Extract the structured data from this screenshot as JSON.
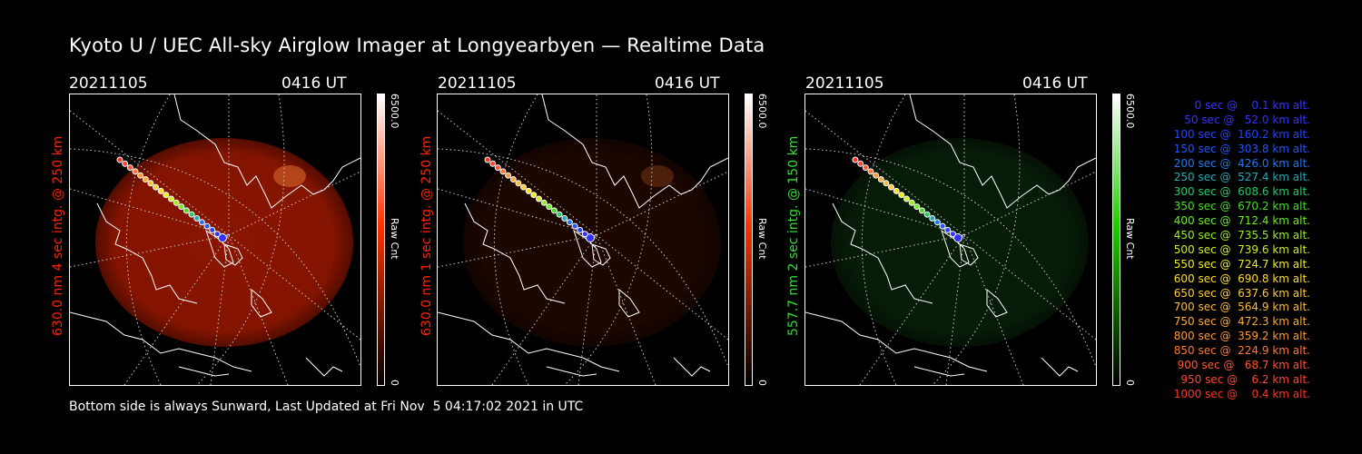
{
  "title": "Kyoto U / UEC All-sky Airglow Imager at Longyearbyen — Realtime Data",
  "footer": "Bottom side is always Sunward, Last Updated at Fri Nov  5 04:17:02 2021 in UTC",
  "panels": [
    {
      "date": "20211105",
      "time": "0416 UT",
      "ylabel": "630.0 nm 4 sec intg. @ 250 km",
      "label_color": "#ff2200",
      "colorbar": {
        "max_label": "6500.0",
        "min_label": "0",
        "unit": "Raw Cnt",
        "from": "#000000",
        "mid": "#ff3300",
        "to": "#ffffff"
      },
      "image_tint": "#8a1500",
      "image_intensity": 1.0
    },
    {
      "date": "20211105",
      "time": "0416 UT",
      "ylabel": "630.0 nm 1 sec intg. @ 250 km",
      "label_color": "#ff2200",
      "colorbar": {
        "max_label": "6500.0",
        "min_label": "0",
        "unit": "Raw Cnt",
        "from": "#000000",
        "mid": "#ff3300",
        "to": "#ffffff"
      },
      "image_tint": "#3a0c00",
      "image_intensity": 0.5
    },
    {
      "date": "20211105",
      "time": "0416 UT",
      "ylabel": "557.7 nm 2 sec intg. @ 150 km",
      "label_color": "#33dd33",
      "colorbar": {
        "max_label": "6500.0",
        "min_label": "0",
        "unit": "Raw Cnt",
        "from": "#000000",
        "mid": "#22cc00",
        "to": "#ffffff"
      },
      "image_tint": "#0f3a10",
      "image_intensity": 0.5
    }
  ],
  "trajectory_legend": [
    {
      "text": "   0 sec @    0.1 km alt.",
      "color": "#3333ff"
    },
    {
      "text": "  50 sec @   52.0 km alt.",
      "color": "#3333ff"
    },
    {
      "text": " 100 sec @  160.2 km alt.",
      "color": "#2244ff"
    },
    {
      "text": " 150 sec @  303.8 km alt.",
      "color": "#2255ff"
    },
    {
      "text": " 200 sec @  426.0 km alt.",
      "color": "#2277ee"
    },
    {
      "text": " 250 sec @  527.4 km alt.",
      "color": "#22aabb"
    },
    {
      "text": " 300 sec @  608.6 km alt.",
      "color": "#22cc66"
    },
    {
      "text": " 350 sec @  670.2 km alt.",
      "color": "#44dd22"
    },
    {
      "text": " 400 sec @  712.4 km alt.",
      "color": "#66ee22"
    },
    {
      "text": " 450 sec @  735.5 km alt.",
      "color": "#99ee22"
    },
    {
      "text": " 500 sec @  739.6 km alt.",
      "color": "#ccee22"
    },
    {
      "text": " 550 sec @  724.7 km alt.",
      "color": "#eeee22"
    },
    {
      "text": " 600 sec @  690.8 km alt.",
      "color": "#ffdd22"
    },
    {
      "text": " 650 sec @  637.6 km alt.",
      "color": "#ffcc33"
    },
    {
      "text": " 700 sec @  564.9 km alt.",
      "color": "#ffbb33"
    },
    {
      "text": " 750 sec @  472.3 km alt.",
      "color": "#ffaa33"
    },
    {
      "text": " 800 sec @  359.2 km alt.",
      "color": "#ff9933"
    },
    {
      "text": " 850 sec @  224.9 km alt.",
      "color": "#ff7733"
    },
    {
      "text": " 900 sec @   68.7 km alt.",
      "color": "#ff5533"
    },
    {
      "text": " 950 sec @    6.2 km alt.",
      "color": "#ff4433"
    },
    {
      "text": "1000 sec @    0.4 km alt.",
      "color": "#ff3322"
    }
  ]
}
